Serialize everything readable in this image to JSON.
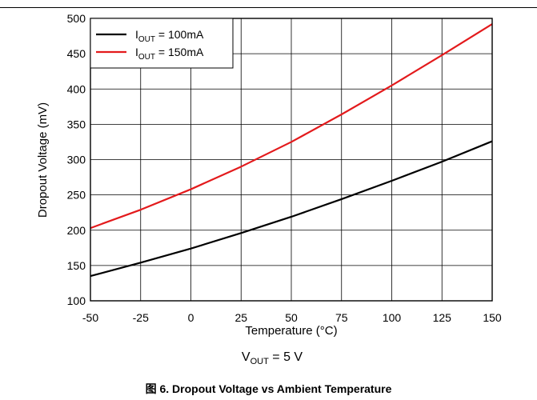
{
  "caption": "图 6. Dropout Voltage vs Ambient Temperature",
  "condition": {
    "label": "V",
    "sub": "OUT",
    "value": " = 5 V"
  },
  "chart_data": {
    "type": "line",
    "title": "",
    "xlabel": "Temperature (°C)",
    "ylabel": "Dropout Voltage (mV)",
    "xlim": [
      -50,
      150
    ],
    "ylim": [
      100,
      500
    ],
    "xticks": [
      -50,
      -25,
      0,
      25,
      50,
      75,
      100,
      125,
      150
    ],
    "yticks": [
      100,
      150,
      200,
      250,
      300,
      350,
      400,
      450,
      500
    ],
    "grid": true,
    "legend_position": "top-left",
    "series": [
      {
        "name_main": "I",
        "name_sub": "OUT",
        "name_rest": " = 100mA",
        "color": "#000000",
        "x": [
          -50,
          -25,
          0,
          25,
          50,
          75,
          100,
          125,
          150
        ],
        "y": [
          135,
          154,
          174,
          196,
          219,
          244,
          270,
          297,
          326
        ]
      },
      {
        "name_main": "I",
        "name_sub": "OUT",
        "name_rest": " = 150mA",
        "color": "#e31a1c",
        "x": [
          -50,
          -25,
          0,
          25,
          50,
          75,
          100,
          125,
          150
        ],
        "y": [
          203,
          229,
          258,
          290,
          325,
          364,
          405,
          448,
          492
        ]
      }
    ]
  }
}
